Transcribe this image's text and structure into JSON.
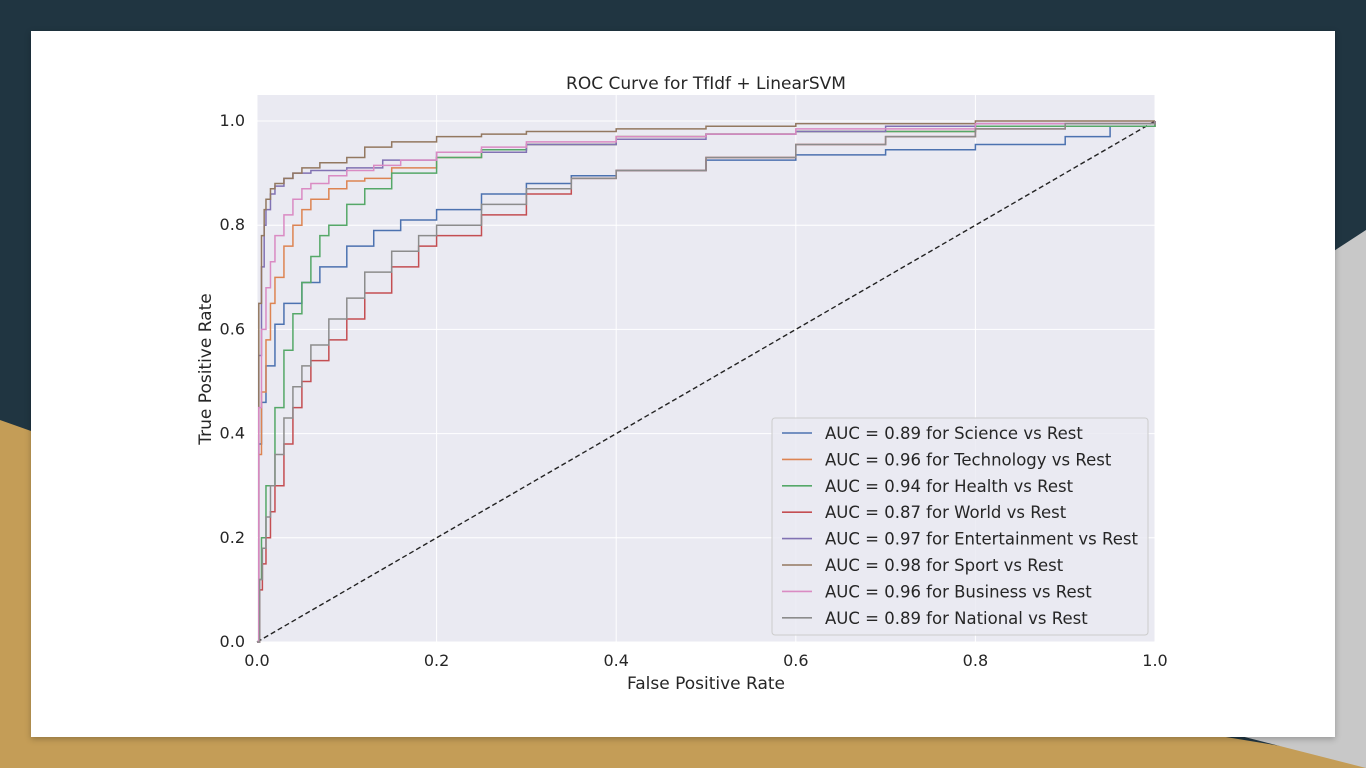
{
  "chart_data": {
    "type": "line",
    "title": "ROC Curve for TfIdf + LinearSVM",
    "xlabel": "False Positive Rate",
    "ylabel": "True Positive Rate",
    "xlim": [
      0.0,
      1.0
    ],
    "ylim": [
      0.0,
      1.05
    ],
    "x_ticks": [
      "0.0",
      "0.2",
      "0.4",
      "0.6",
      "0.8",
      "1.0"
    ],
    "y_ticks": [
      "0.0",
      "0.2",
      "0.4",
      "0.6",
      "0.8",
      "1.0"
    ],
    "grid": true,
    "legend_position": "lower-right",
    "diagonal": {
      "x": [
        0,
        1
      ],
      "y": [
        0,
        1
      ],
      "style": "dashed",
      "color": "#222222"
    },
    "series": [
      {
        "name": "AUC = 0.89 for Science vs Rest",
        "color": "#4C72B0",
        "x": [
          0,
          0.002,
          0.005,
          0.01,
          0.02,
          0.03,
          0.05,
          0.07,
          0.1,
          0.13,
          0.16,
          0.2,
          0.25,
          0.3,
          0.35,
          0.4,
          0.5,
          0.6,
          0.7,
          0.8,
          0.9,
          0.95,
          1.0
        ],
        "y": [
          0,
          0.38,
          0.46,
          0.53,
          0.61,
          0.65,
          0.69,
          0.72,
          0.76,
          0.79,
          0.81,
          0.83,
          0.86,
          0.88,
          0.895,
          0.905,
          0.925,
          0.935,
          0.945,
          0.955,
          0.97,
          0.99,
          1.0
        ]
      },
      {
        "name": "AUC = 0.96 for Technology vs Rest",
        "color": "#DD8452",
        "x": [
          0,
          0.002,
          0.005,
          0.01,
          0.015,
          0.02,
          0.03,
          0.04,
          0.05,
          0.06,
          0.08,
          0.1,
          0.12,
          0.15,
          0.2,
          0.25,
          0.3,
          0.4,
          0.5,
          0.6,
          0.8,
          1.0
        ],
        "y": [
          0,
          0.36,
          0.48,
          0.58,
          0.65,
          0.7,
          0.76,
          0.8,
          0.83,
          0.85,
          0.87,
          0.885,
          0.89,
          0.91,
          0.93,
          0.945,
          0.955,
          0.97,
          0.975,
          0.98,
          0.99,
          1.0
        ]
      },
      {
        "name": "AUC = 0.94 for Health vs Rest",
        "color": "#55A868",
        "x": [
          0,
          0.002,
          0.005,
          0.01,
          0.02,
          0.03,
          0.04,
          0.05,
          0.06,
          0.07,
          0.08,
          0.1,
          0.12,
          0.15,
          0.2,
          0.25,
          0.3,
          0.4,
          0.5,
          0.6,
          0.8,
          1.0
        ],
        "y": [
          0,
          0.12,
          0.2,
          0.3,
          0.45,
          0.56,
          0.63,
          0.69,
          0.74,
          0.78,
          0.8,
          0.84,
          0.87,
          0.9,
          0.93,
          0.945,
          0.955,
          0.97,
          0.975,
          0.98,
          0.99,
          1.0
        ]
      },
      {
        "name": "AUC = 0.87 for World vs Rest",
        "color": "#C44E52",
        "x": [
          0,
          0.003,
          0.006,
          0.01,
          0.015,
          0.02,
          0.03,
          0.04,
          0.05,
          0.06,
          0.08,
          0.1,
          0.12,
          0.15,
          0.18,
          0.2,
          0.25,
          0.3,
          0.35,
          0.4,
          0.5,
          0.6,
          0.7,
          0.8,
          0.9,
          1.0
        ],
        "y": [
          0,
          0.1,
          0.15,
          0.2,
          0.25,
          0.3,
          0.38,
          0.45,
          0.5,
          0.54,
          0.58,
          0.62,
          0.67,
          0.72,
          0.76,
          0.78,
          0.82,
          0.86,
          0.89,
          0.905,
          0.93,
          0.955,
          0.97,
          0.985,
          0.995,
          1.0
        ]
      },
      {
        "name": "AUC = 0.97 for Entertainment vs Rest",
        "color": "#8172B3",
        "x": [
          0,
          0.002,
          0.005,
          0.008,
          0.01,
          0.015,
          0.02,
          0.03,
          0.04,
          0.06,
          0.1,
          0.14,
          0.2,
          0.3,
          0.4,
          0.5,
          0.6,
          0.7,
          0.8,
          1.0
        ],
        "y": [
          0,
          0.55,
          0.72,
          0.8,
          0.83,
          0.86,
          0.875,
          0.89,
          0.9,
          0.905,
          0.91,
          0.925,
          0.94,
          0.955,
          0.965,
          0.975,
          0.98,
          0.99,
          0.995,
          1.0
        ]
      },
      {
        "name": "AUC = 0.98 for Sport vs Rest",
        "color": "#937860",
        "x": [
          0,
          0.002,
          0.005,
          0.008,
          0.01,
          0.015,
          0.02,
          0.03,
          0.04,
          0.05,
          0.07,
          0.1,
          0.12,
          0.15,
          0.2,
          0.25,
          0.3,
          0.4,
          0.5,
          0.6,
          0.8,
          1.0
        ],
        "y": [
          0,
          0.65,
          0.78,
          0.83,
          0.85,
          0.87,
          0.88,
          0.89,
          0.9,
          0.91,
          0.92,
          0.93,
          0.95,
          0.96,
          0.97,
          0.975,
          0.98,
          0.985,
          0.99,
          0.995,
          1.0,
          1.0
        ]
      },
      {
        "name": "AUC = 0.96 for Business vs Rest",
        "color": "#DA8BC3",
        "x": [
          0,
          0.002,
          0.005,
          0.01,
          0.015,
          0.02,
          0.03,
          0.04,
          0.05,
          0.06,
          0.08,
          0.1,
          0.13,
          0.16,
          0.2,
          0.25,
          0.3,
          0.4,
          0.5,
          0.6,
          0.8,
          1.0
        ],
        "y": [
          0,
          0.45,
          0.6,
          0.68,
          0.73,
          0.78,
          0.82,
          0.85,
          0.87,
          0.88,
          0.895,
          0.905,
          0.915,
          0.925,
          0.94,
          0.95,
          0.96,
          0.97,
          0.975,
          0.985,
          0.995,
          1.0
        ]
      },
      {
        "name": "AUC = 0.89 for National vs Rest",
        "color": "#8C8C8C",
        "x": [
          0,
          0.003,
          0.006,
          0.01,
          0.015,
          0.02,
          0.03,
          0.04,
          0.05,
          0.06,
          0.08,
          0.1,
          0.12,
          0.15,
          0.18,
          0.2,
          0.25,
          0.3,
          0.35,
          0.4,
          0.5,
          0.6,
          0.7,
          0.8,
          0.9,
          1.0
        ],
        "y": [
          0,
          0.12,
          0.18,
          0.24,
          0.3,
          0.36,
          0.43,
          0.49,
          0.53,
          0.57,
          0.62,
          0.66,
          0.71,
          0.75,
          0.78,
          0.8,
          0.84,
          0.87,
          0.89,
          0.905,
          0.93,
          0.955,
          0.97,
          0.985,
          0.995,
          1.0
        ]
      }
    ]
  }
}
